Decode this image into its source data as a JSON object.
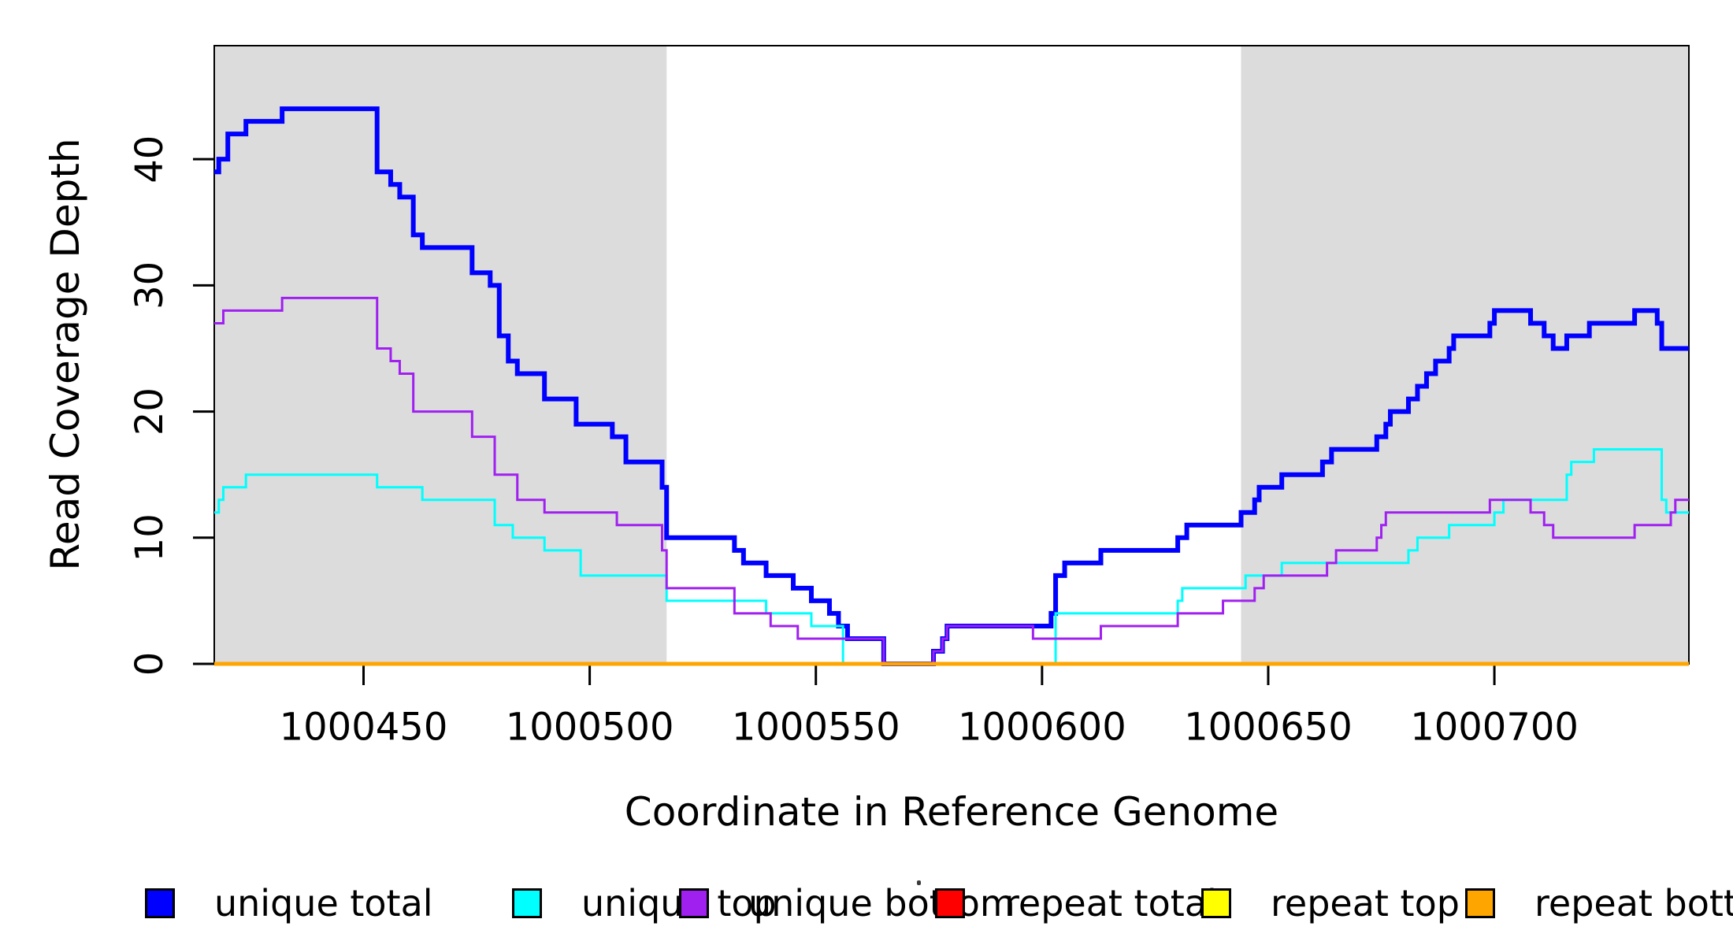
{
  "figure": {
    "background": "#ffffff"
  },
  "chart_data": {
    "type": "line",
    "subtype": "step",
    "title": "",
    "xlabel": "Coordinate in Reference Genome",
    "ylabel": "Read Coverage Depth",
    "xlim": [
      1000417,
      1000743
    ],
    "ylim": [
      0,
      49
    ],
    "x_ticks": [
      1000450,
      1000500,
      1000550,
      1000600,
      1000650,
      1000700
    ],
    "y_ticks": [
      0,
      10,
      20,
      30,
      40
    ],
    "grid": false,
    "legend_position": "bottom",
    "plot_border_color": "#000000",
    "shaded_regions": {
      "color": "#DCDCDC",
      "x_ranges": [
        [
          1000417,
          1000517
        ],
        [
          1000644,
          1000743
        ]
      ]
    },
    "series": [
      {
        "name": "unique total",
        "color": "#0000FF",
        "line_width": 6,
        "points": [
          [
            1000417,
            39
          ],
          [
            1000418,
            40
          ],
          [
            1000420,
            42
          ],
          [
            1000424,
            43
          ],
          [
            1000432,
            44
          ],
          [
            1000453,
            39
          ],
          [
            1000456,
            38
          ],
          [
            1000458,
            37
          ],
          [
            1000461,
            34
          ],
          [
            1000463,
            33
          ],
          [
            1000474,
            31
          ],
          [
            1000478,
            30
          ],
          [
            1000480,
            26
          ],
          [
            1000482,
            24
          ],
          [
            1000484,
            23
          ],
          [
            1000490,
            21
          ],
          [
            1000497,
            19
          ],
          [
            1000505,
            18
          ],
          [
            1000508,
            16
          ],
          [
            1000516,
            14
          ],
          [
            1000517,
            10
          ],
          [
            1000532,
            9
          ],
          [
            1000534,
            8
          ],
          [
            1000539,
            7
          ],
          [
            1000545,
            6
          ],
          [
            1000549,
            5
          ],
          [
            1000553,
            4
          ],
          [
            1000555,
            3
          ],
          [
            1000557,
            2
          ],
          [
            1000565,
            0
          ],
          [
            1000576,
            1
          ],
          [
            1000578,
            2
          ],
          [
            1000579,
            3
          ],
          [
            1000602,
            4
          ],
          [
            1000603,
            7
          ],
          [
            1000605,
            8
          ],
          [
            1000613,
            9
          ],
          [
            1000630,
            10
          ],
          [
            1000632,
            11
          ],
          [
            1000644,
            12
          ],
          [
            1000647,
            13
          ],
          [
            1000648,
            14
          ],
          [
            1000653,
            15
          ],
          [
            1000662,
            16
          ],
          [
            1000664,
            17
          ],
          [
            1000674,
            18
          ],
          [
            1000676,
            19
          ],
          [
            1000677,
            20
          ],
          [
            1000681,
            21
          ],
          [
            1000683,
            22
          ],
          [
            1000685,
            23
          ],
          [
            1000687,
            24
          ],
          [
            1000690,
            25
          ],
          [
            1000691,
            26
          ],
          [
            1000699,
            27
          ],
          [
            1000700,
            28
          ],
          [
            1000708,
            27
          ],
          [
            1000711,
            26
          ],
          [
            1000713,
            25
          ],
          [
            1000716,
            26
          ],
          [
            1000721,
            27
          ],
          [
            1000731,
            28
          ],
          [
            1000736,
            27
          ],
          [
            1000737,
            25
          ]
        ]
      },
      {
        "name": "unique top",
        "color": "#00FFFF",
        "line_width": 3,
        "points": [
          [
            1000417,
            12
          ],
          [
            1000418,
            13
          ],
          [
            1000419,
            14
          ],
          [
            1000424,
            15
          ],
          [
            1000453,
            14
          ],
          [
            1000463,
            13
          ],
          [
            1000479,
            11
          ],
          [
            1000483,
            10
          ],
          [
            1000490,
            9
          ],
          [
            1000498,
            7
          ],
          [
            1000517,
            5
          ],
          [
            1000539,
            4
          ],
          [
            1000549,
            3
          ],
          [
            1000556,
            0
          ],
          [
            1000603,
            4
          ],
          [
            1000630,
            5
          ],
          [
            1000631,
            6
          ],
          [
            1000645,
            7
          ],
          [
            1000653,
            8
          ],
          [
            1000681,
            9
          ],
          [
            1000683,
            10
          ],
          [
            1000690,
            11
          ],
          [
            1000700,
            12
          ],
          [
            1000702,
            13
          ],
          [
            1000716,
            15
          ],
          [
            1000717,
            16
          ],
          [
            1000722,
            17
          ],
          [
            1000737,
            13
          ],
          [
            1000738,
            12
          ]
        ]
      },
      {
        "name": "unique bottom",
        "color": "#A020F0",
        "line_width": 3,
        "points": [
          [
            1000417,
            27
          ],
          [
            1000419,
            28
          ],
          [
            1000432,
            29
          ],
          [
            1000453,
            25
          ],
          [
            1000456,
            24
          ],
          [
            1000458,
            23
          ],
          [
            1000461,
            20
          ],
          [
            1000474,
            18
          ],
          [
            1000479,
            15
          ],
          [
            1000484,
            13
          ],
          [
            1000490,
            12
          ],
          [
            1000506,
            11
          ],
          [
            1000516,
            9
          ],
          [
            1000517,
            6
          ],
          [
            1000532,
            4
          ],
          [
            1000540,
            3
          ],
          [
            1000546,
            2
          ],
          [
            1000565,
            0
          ],
          [
            1000576,
            1
          ],
          [
            1000578,
            2
          ],
          [
            1000579,
            3
          ],
          [
            1000598,
            2
          ],
          [
            1000613,
            3
          ],
          [
            1000630,
            4
          ],
          [
            1000640,
            5
          ],
          [
            1000647,
            6
          ],
          [
            1000649,
            7
          ],
          [
            1000663,
            8
          ],
          [
            1000665,
            9
          ],
          [
            1000674,
            10
          ],
          [
            1000675,
            11
          ],
          [
            1000676,
            12
          ],
          [
            1000699,
            13
          ],
          [
            1000708,
            12
          ],
          [
            1000711,
            11
          ],
          [
            1000713,
            10
          ],
          [
            1000731,
            11
          ],
          [
            1000739,
            12
          ],
          [
            1000740,
            13
          ]
        ]
      },
      {
        "name": "repeat total",
        "color": "#FF0000",
        "line_width": 3,
        "points": [
          [
            1000417,
            0
          ]
        ]
      },
      {
        "name": "repeat top",
        "color": "#FFFF00",
        "line_width": 3,
        "points": [
          [
            1000417,
            0
          ]
        ]
      },
      {
        "name": "repeat bottom",
        "color": "#FFA500",
        "line_width": 5,
        "points": [
          [
            1000417,
            0
          ]
        ]
      }
    ]
  },
  "legend": {
    "items": [
      {
        "label": "unique total",
        "color": "#0000FF"
      },
      {
        "label": "unique top",
        "color": "#00FFFF"
      },
      {
        "label": "unique bottom",
        "color": "#A020F0"
      },
      {
        "label": "repeat total",
        "color": "#FF0000"
      },
      {
        "label": "repeat top",
        "color": "#FFFF00"
      },
      {
        "label": "repeat bottom",
        "color": "#FFA500"
      }
    ]
  }
}
